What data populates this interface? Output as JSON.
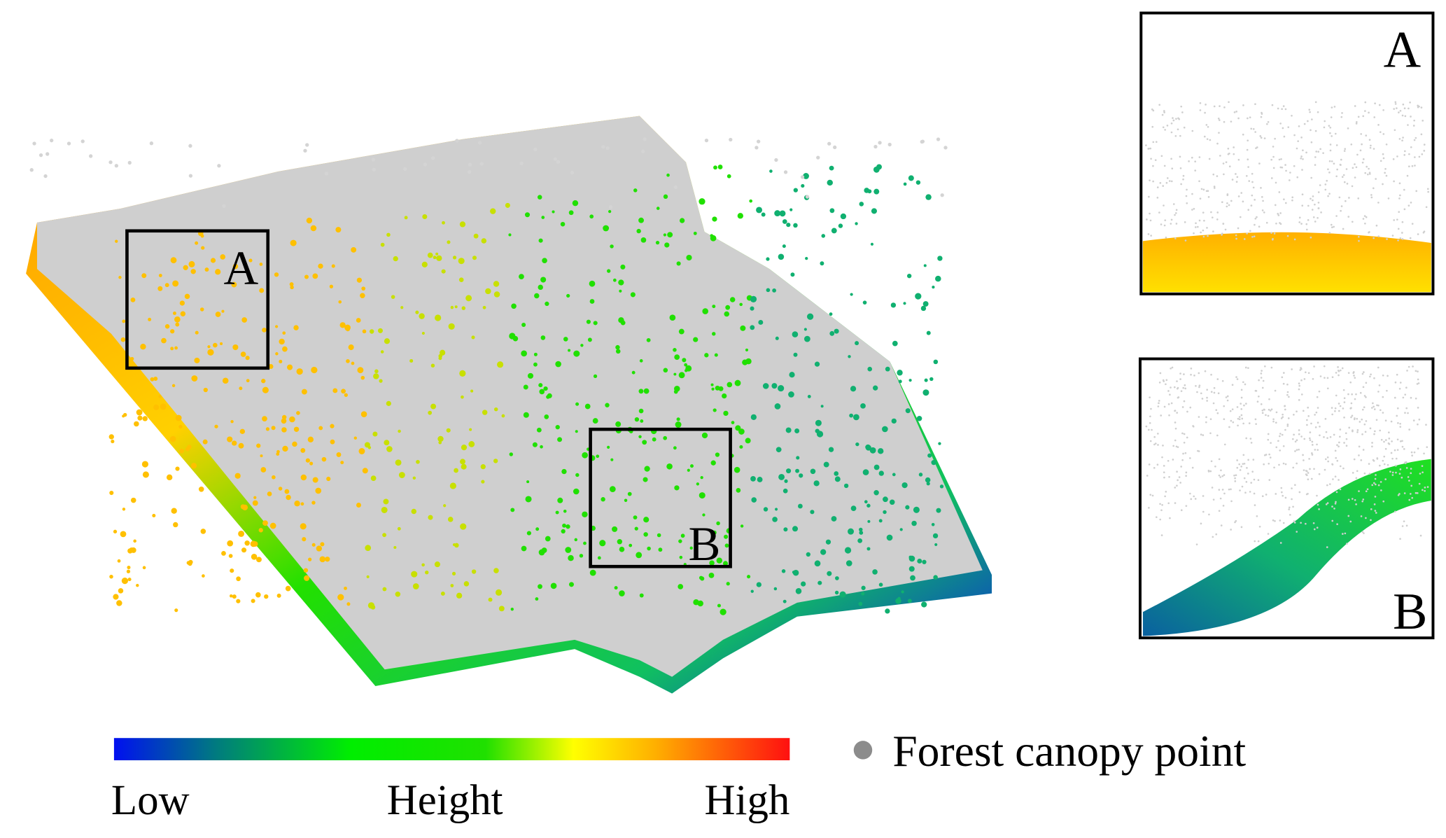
{
  "main_labels": [
    "A",
    "B"
  ],
  "insets": [
    {
      "label": "A"
    },
    {
      "label": "B"
    }
  ],
  "colorbar": {
    "low": "Low",
    "title": "Height",
    "high": "High"
  },
  "legend": {
    "label": "Forest canopy point"
  }
}
